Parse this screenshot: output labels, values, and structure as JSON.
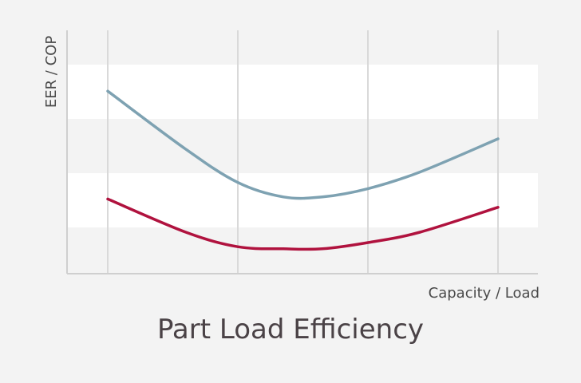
{
  "chart_data": {
    "type": "line",
    "title": "Part Load Efficiency",
    "xlabel": "Capacity / Load",
    "ylabel": "EER / COP",
    "xlim": [
      0,
      1
    ],
    "ylim": [
      0,
      1
    ],
    "grid": {
      "vertical_lines": 4,
      "horizontal_bands": true
    },
    "series": [
      {
        "color": "#7ea2b2",
        "x": [
          0.0,
          0.2,
          0.333,
          0.45,
          0.55,
          0.667,
          0.8,
          1.0
        ],
        "y": [
          0.88,
          0.6,
          0.44,
          0.37,
          0.37,
          0.41,
          0.49,
          0.65
        ]
      },
      {
        "color": "#b0123e",
        "x": [
          0.0,
          0.2,
          0.333,
          0.45,
          0.55,
          0.667,
          0.8,
          1.0
        ],
        "y": [
          0.36,
          0.2,
          0.13,
          0.12,
          0.12,
          0.15,
          0.2,
          0.32
        ]
      }
    ]
  }
}
